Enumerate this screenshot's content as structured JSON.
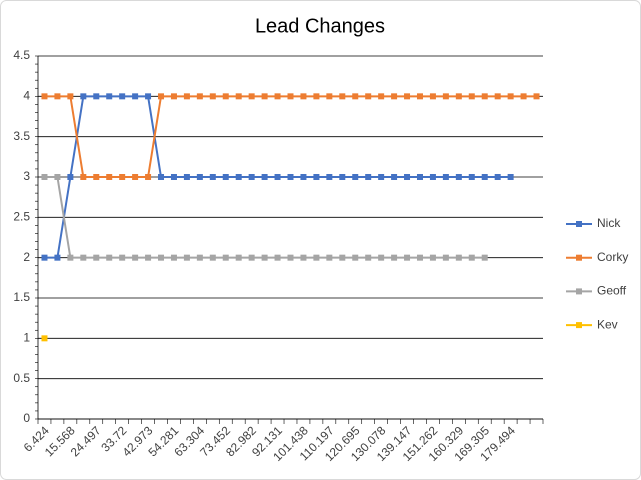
{
  "chart_data": {
    "type": "line",
    "title": "Lead Changes",
    "categories": [
      "6.424",
      null,
      "15.568",
      null,
      "24.497",
      null,
      "33.72",
      null,
      "42.973",
      null,
      "54.281",
      null,
      "63.304",
      null,
      "73.452",
      null,
      "82.982",
      null,
      "92.131",
      null,
      "101.438",
      null,
      "110.197",
      null,
      "120.695",
      null,
      "130.078",
      null,
      "139.147",
      null,
      "151.262",
      null,
      "160.329",
      null,
      "169.305",
      null,
      "179.494",
      null,
      null
    ],
    "series": [
      {
        "name": "Nick",
        "color": "#4472c4",
        "values": [
          2,
          2,
          3,
          4,
          4,
          4,
          4,
          4,
          4,
          3,
          3,
          3,
          3,
          3,
          3,
          3,
          3,
          3,
          3,
          3,
          3,
          3,
          3,
          3,
          3,
          3,
          3,
          3,
          3,
          3,
          3,
          3,
          3,
          3,
          3,
          3,
          3,
          null,
          null
        ]
      },
      {
        "name": "Corky",
        "color": "#ed7d31",
        "values": [
          4,
          4,
          4,
          3,
          3,
          3,
          3,
          3,
          3,
          4,
          4,
          4,
          4,
          4,
          4,
          4,
          4,
          4,
          4,
          4,
          4,
          4,
          4,
          4,
          4,
          4,
          4,
          4,
          4,
          4,
          4,
          4,
          4,
          4,
          4,
          4,
          4,
          4,
          4
        ]
      },
      {
        "name": "Geoff",
        "color": "#a5a5a5",
        "values": [
          3,
          3,
          2,
          2,
          2,
          2,
          2,
          2,
          2,
          2,
          2,
          2,
          2,
          2,
          2,
          2,
          2,
          2,
          2,
          2,
          2,
          2,
          2,
          2,
          2,
          2,
          2,
          2,
          2,
          2,
          2,
          2,
          2,
          2,
          2,
          null,
          null,
          null,
          null
        ]
      },
      {
        "name": "Kev",
        "color": "#ffc000",
        "values": [
          1,
          null,
          null,
          null,
          null,
          null,
          null,
          null,
          null,
          null,
          null,
          null,
          null,
          null,
          null,
          null,
          null,
          null,
          null,
          null,
          null,
          null,
          null,
          null,
          null,
          null,
          null,
          null,
          null,
          null,
          null,
          null,
          null,
          null,
          null,
          null,
          null,
          null,
          null
        ]
      }
    ],
    "ylim": [
      0,
      4.5
    ],
    "yticks": [
      0,
      0.5,
      1,
      1.5,
      2,
      2.5,
      3,
      3.5,
      4,
      4.5
    ],
    "grid": true,
    "legend": "right"
  }
}
